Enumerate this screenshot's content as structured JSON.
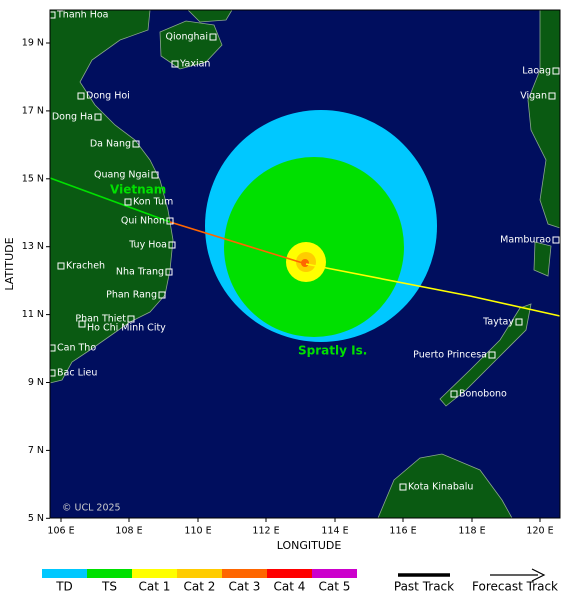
{
  "map": {
    "x_label": "LONGITUDE",
    "y_label": "LATITUDE",
    "x_ticks": [
      "106 E",
      "108 E",
      "110 E",
      "112 E",
      "114 E",
      "116 E",
      "118 E",
      "120 E"
    ],
    "y_ticks": [
      "19 N",
      "17 N",
      "15 N",
      "13 N",
      "11 N",
      "9 N",
      "7 N",
      "5 N"
    ],
    "places": [
      "Thanh Hoa",
      "Qionghai",
      "Yaxian",
      "Laoag",
      "Dong Hoi",
      "Vigan",
      "Dong Ha",
      "Da Nang",
      "Quang Ngai",
      "Kon Tum",
      "Qui Nhon",
      "Tuy Hoa",
      "Mamburao",
      "Kracheh",
      "Nha Trang",
      "Phan Rang",
      "Phan Thiet",
      "Ho Chi Minh City",
      "Taytay",
      "Can Tho",
      "Puerto Princesa",
      "Bac Lieu",
      "Bonobono",
      "Kota Kinabalu"
    ],
    "country_label": "Vietnam",
    "islands_label": "Spratly Is.",
    "credit": "© UCL 2025"
  },
  "legend": {
    "categories": [
      "TD",
      "TS",
      "Cat 1",
      "Cat 2",
      "Cat 3",
      "Cat 4",
      "Cat 5"
    ],
    "past_track": "Past Track",
    "forecast_track": "Forecast Track"
  }
}
